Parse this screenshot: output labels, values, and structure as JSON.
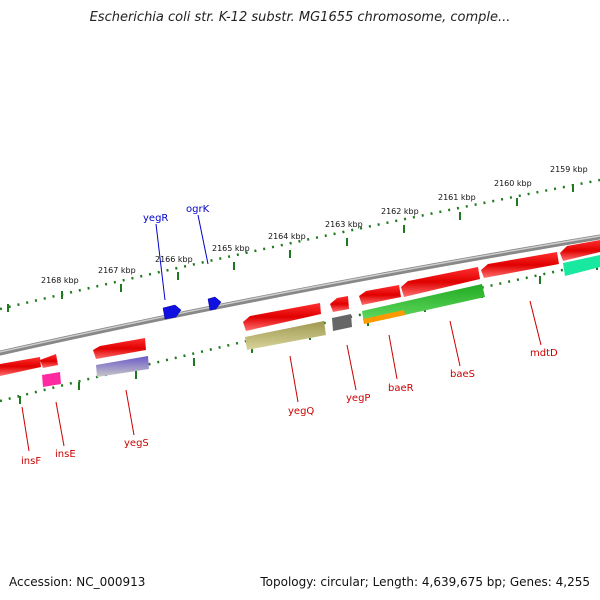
{
  "title": "Escherichia coli str. K-12 substr. MG1655 chromosome, comple...",
  "footer": {
    "accession": "Accession: NC_000913",
    "summary": "Topology: circular; Length: 4,639,675 bp; Genes: 4,255"
  },
  "colors": {
    "backbone": "#8c8c8c",
    "tick": "#1f7a1f",
    "forward_label": "#0000cc",
    "reverse_label": "#cc0000"
  },
  "ruler_ticks": [
    "2159 kbp",
    "2160 kbp",
    "2161 kbp",
    "2162 kbp",
    "2163 kbp",
    "2164 kbp",
    "2165 kbp",
    "2166 kbp",
    "2167 kbp",
    "2168 kbp"
  ],
  "gene_labels": [
    {
      "name": "yegR",
      "strand": "forward"
    },
    {
      "name": "ogrK",
      "strand": "forward"
    },
    {
      "name": "insF",
      "strand": "reverse"
    },
    {
      "name": "insE",
      "strand": "reverse"
    },
    {
      "name": "yegS",
      "strand": "reverse"
    },
    {
      "name": "yegQ",
      "strand": "reverse"
    },
    {
      "name": "yegP",
      "strand": "reverse"
    },
    {
      "name": "baeR",
      "strand": "reverse"
    },
    {
      "name": "baeS",
      "strand": "reverse"
    },
    {
      "name": "mdtD",
      "strand": "reverse"
    }
  ]
}
